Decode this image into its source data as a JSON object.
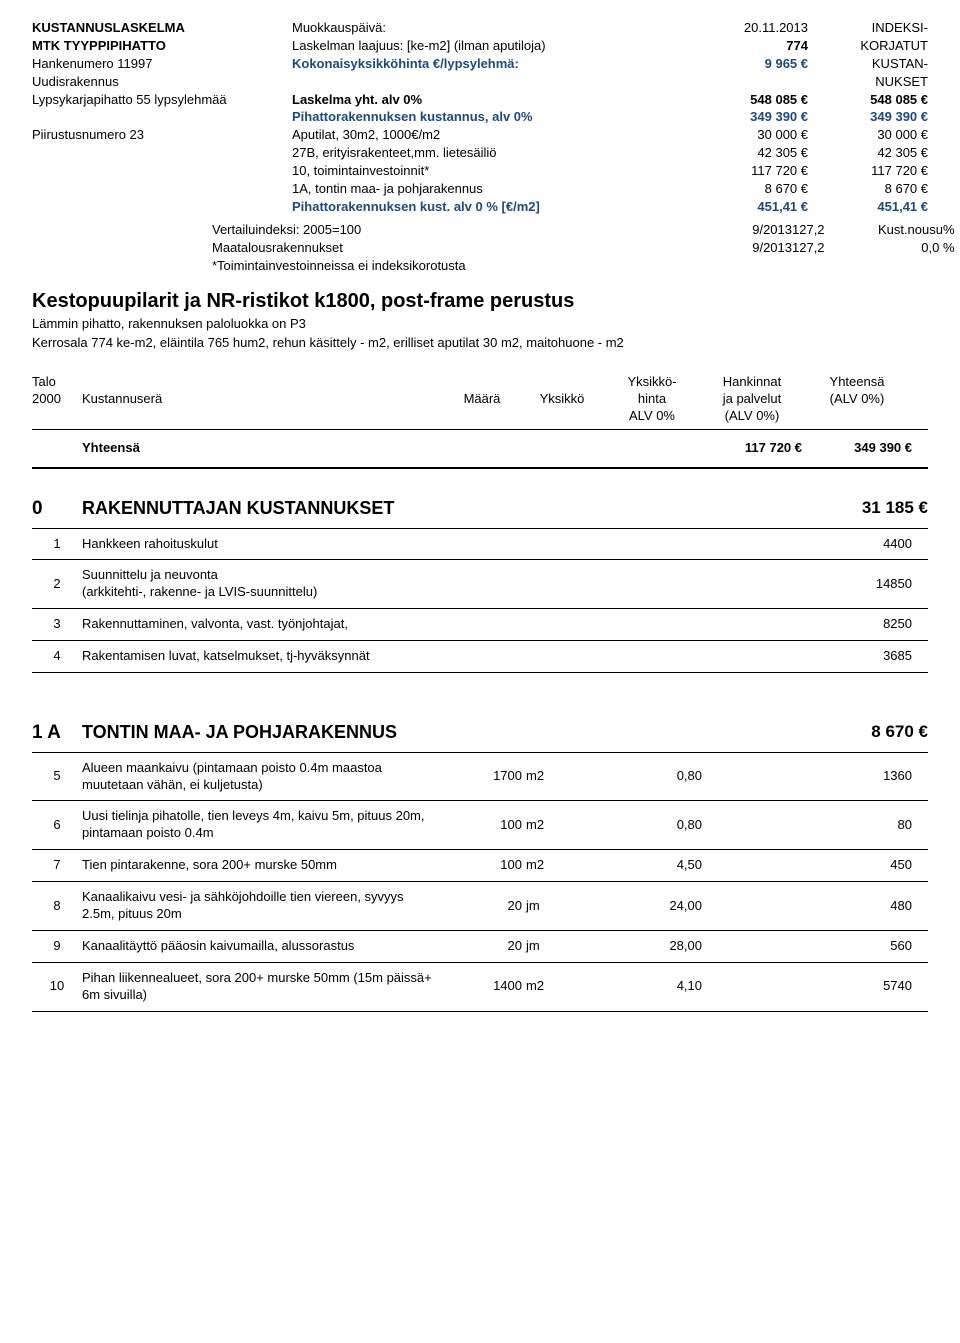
{
  "header": {
    "r1": {
      "c1": "KUSTANNUSLASKELMA",
      "c2": "Muokkauspäivä:",
      "c3": "20.11.2013",
      "c4": "INDEKSI-"
    },
    "r2": {
      "c1": "MTK TYYPPIPIHATTO",
      "c2": "Laskelman laajuus: [ke-m2] (ilman aputiloja)",
      "c3": "774",
      "c4": "KORJATUT"
    },
    "r3": {
      "c1": "Hankenumero 11997",
      "c2": "Kokonaisyksikköhinta €/lypsylehmä:",
      "c3": "9 965 €",
      "c4": "KUSTAN-"
    },
    "r4": {
      "c1": "Uudisrakennus",
      "c2": "",
      "c3": "",
      "c4": "NUKSET"
    },
    "r5": {
      "c1": "Lypsykarjapihatto 55 lypsylehmää",
      "c2": "Laskelma yht. alv 0%",
      "c3": "548 085 €",
      "c4": "548 085 €"
    },
    "r6": {
      "c1": "",
      "c2": "Pihattorakennuksen kustannus, alv 0%",
      "c3": "349 390 €",
      "c4": "349 390 €"
    },
    "r7": {
      "c1": "Piirustusnumero  23",
      "c2": "Aputilat, 30m2, 1000€/m2",
      "c3": "30 000 €",
      "c4": "30 000 €"
    },
    "r8": {
      "c1": "",
      "c2": "27B, erityisrakenteet,mm. lietesäiliö",
      "c3": "42 305 €",
      "c4": "42 305 €"
    },
    "r9": {
      "c1": "",
      "c2": "10, toimintainvestoinnit*",
      "c3": "117 720 €",
      "c4": "117 720 €"
    },
    "r10": {
      "c1": "",
      "c2": "1A, tontin maa- ja pohjarakennus",
      "c3": "8 670 €",
      "c4": "8 670 €"
    },
    "r11": {
      "c1": "",
      "c2": "Pihattorakennuksen kust. alv 0 %  [€/m2]",
      "c3": "451,41 €",
      "c4": "451,41 €"
    }
  },
  "compare": {
    "r1": {
      "label": "Vertailuindeksi: 2005=100",
      "c3": "9/2013",
      "c4a": "127,2",
      "c4b": "Kust.nousu%"
    },
    "r2": {
      "label": "Maatalousrakennukset",
      "c3": "9/2013",
      "c4a": "127,2",
      "c4b": "0,0 %"
    },
    "r3": {
      "label": "*Toimintainvestoinneissa ei indeksikorotusta"
    }
  },
  "title": "Kestopuupilarit ja NR-ristikot k1800, post-frame perustus",
  "subtitle1": "Lämmin pihatto, rakennuksen paloluokka on P3",
  "subtitle2": "Kerrosala 774 ke-m2, eläintila 765 hum2, rehun käsittely - m2, erilliset aputilat 30 m2, maitohuone - m2",
  "tablehead": {
    "c1a": "Talo",
    "c1b": "2000",
    "c2": "Kustannuserä",
    "c3": "Määrä",
    "c4": "Yksikkö",
    "c5a": "Yksikkö-",
    "c5b": "hinta",
    "c5c": "ALV 0%",
    "c6a": "Hankinnat",
    "c6b": "ja palvelut",
    "c6c": "(ALV 0%)",
    "c7a": "Yhteensä",
    "c7b": "(ALV 0%)"
  },
  "totals": {
    "label": "Yhteensä",
    "c6": "117 720 €",
    "c7": "349 390 €"
  },
  "sec0": {
    "num": "0",
    "title": "RAKENNUTTAJAN KUSTANNUKSET",
    "amt": "31 185 €"
  },
  "rows0": [
    {
      "idx": "1",
      "desc": "Hankkeen rahoituskulut",
      "total": "4400"
    },
    {
      "idx": "2",
      "desc": "Suunnittelu ja neuvonta\n(arkkitehti-, rakenne- ja LVIS-suunnittelu)",
      "total": "14850"
    },
    {
      "idx": "3",
      "desc": "Rakennuttaminen, valvonta, vast. työnjohtajat,",
      "total": "8250"
    },
    {
      "idx": "4",
      "desc": "Rakentamisen luvat, katselmukset, tj-hyväksynnät",
      "total": "3685"
    }
  ],
  "sec1A": {
    "num": "1 A",
    "title": "TONTIN MAA- JA POHJARAKENNUS",
    "amt": "8 670 €"
  },
  "rows1A": [
    {
      "idx": "5",
      "desc": "Alueen maankaivu (pintamaan poisto 0.4m maastoa muutetaan vähän, ei kuljetusta)",
      "qty": "1700",
      "unit": "m2",
      "uprice": "0,80",
      "total": "1360"
    },
    {
      "idx": "6",
      "desc": "Uusi tielinja pihatolle, tien leveys 4m, kaivu 5m, pituus 20m, pintamaan poisto 0.4m",
      "qty": "100",
      "unit": "m2",
      "uprice": "0,80",
      "total": "80"
    },
    {
      "idx": "7",
      "desc": "Tien pintarakenne, sora 200+ murske 50mm",
      "qty": "100",
      "unit": "m2",
      "uprice": "4,50",
      "total": "450"
    },
    {
      "idx": "8",
      "desc": "Kanaalikaivu vesi- ja sähköjohdoille tien viereen, syvyys 2.5m, pituus 20m",
      "qty": "20",
      "unit": "jm",
      "uprice": "24,00",
      "total": "480"
    },
    {
      "idx": "9",
      "desc": "Kanaalitäyttö pääosin kaivumailla, alussorastus",
      "qty": "20",
      "unit": "jm",
      "uprice": "28,00",
      "total": "560"
    },
    {
      "idx": "10",
      "desc": "Pihan liikennealueet, sora 200+ murske 50mm (15m päissä+ 6m sivuilla)",
      "qty": "1400",
      "unit": "m2",
      "uprice": "4,10",
      "total": "5740"
    }
  ]
}
